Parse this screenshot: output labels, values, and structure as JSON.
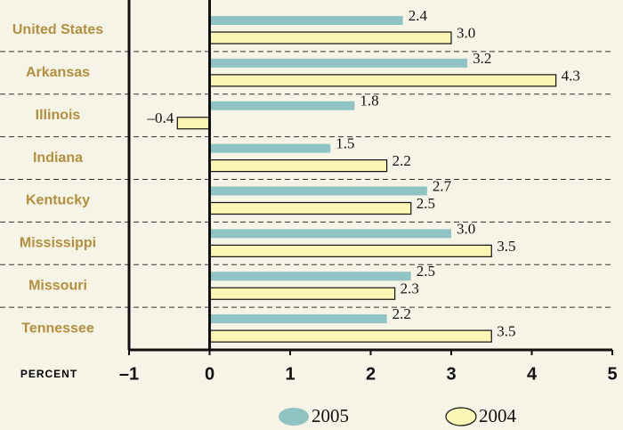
{
  "chart_data": {
    "type": "hbar",
    "categories": [
      "United States",
      "Arkansas",
      "Illinois",
      "Indiana",
      "Kentucky",
      "Mississippi",
      "Missouri",
      "Tennessee"
    ],
    "series": [
      {
        "name": "2005",
        "color": "#8fc3c4",
        "values": [
          2.4,
          3.2,
          1.8,
          1.5,
          2.7,
          3.0,
          2.5,
          2.2
        ],
        "value_labels": [
          "2.4",
          "3.2",
          "1.8",
          "1.5",
          "2.7",
          "3.0",
          "2.5",
          "2.2"
        ]
      },
      {
        "name": "2004",
        "color": "#fcf6b4",
        "values": [
          3.0,
          4.3,
          -0.4,
          2.2,
          2.5,
          3.5,
          2.3,
          3.5
        ],
        "value_labels": [
          "3.0",
          "4.3",
          "–0.4",
          "2.2",
          "2.5",
          "3.5",
          "2.3",
          "3.5"
        ]
      }
    ],
    "xlabel": "PERCENT",
    "xlim": [
      -1,
      5
    ],
    "xticks": [
      {
        "value": -1,
        "label": "–1"
      },
      0,
      1,
      2,
      3,
      4,
      5
    ]
  }
}
